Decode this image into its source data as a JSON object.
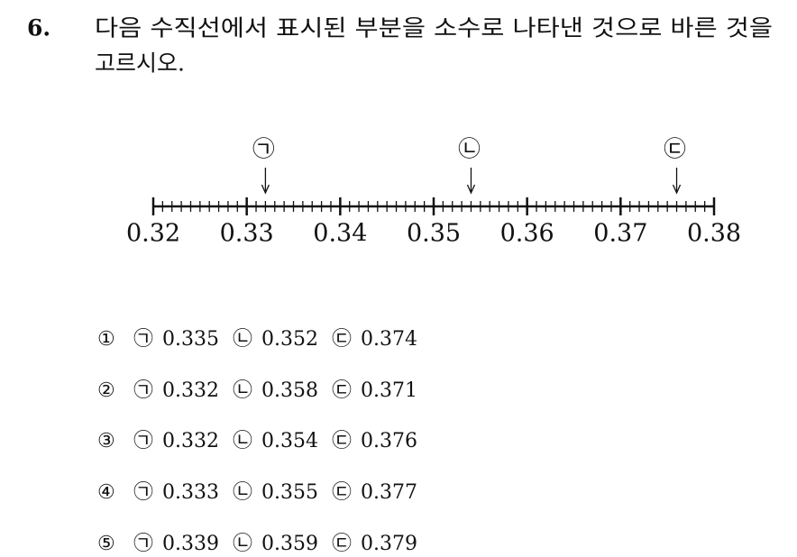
{
  "question": {
    "number": "6.",
    "lines": [
      "다음 수직선에서 표시된 부분을 소수로 나타낸 것으로 바른 것을",
      "고르시오."
    ]
  },
  "number_line": {
    "ticks": [
      0.32,
      0.33,
      0.34,
      0.35,
      0.36,
      0.37,
      0.38
    ],
    "markers": [
      {
        "label": "㉠",
        "value": 0.332
      },
      {
        "label": "㉡",
        "value": 0.354
      },
      {
        "label": "㉢",
        "value": 0.376
      }
    ]
  },
  "options": [
    {
      "number": "①",
      "items": [
        {
          "mark": "㉠",
          "value": 0.335
        },
        {
          "mark": "㉡",
          "value": 0.352
        },
        {
          "mark": "㉢",
          "value": 0.374
        }
      ]
    },
    {
      "number": "②",
      "items": [
        {
          "mark": "㉠",
          "value": 0.332
        },
        {
          "mark": "㉡",
          "value": 0.358
        },
        {
          "mark": "㉢",
          "value": 0.371
        }
      ]
    },
    {
      "number": "③",
      "items": [
        {
          "mark": "㉠",
          "value": 0.332
        },
        {
          "mark": "㉡",
          "value": 0.354
        },
        {
          "mark": "㉢",
          "value": 0.376
        }
      ]
    },
    {
      "number": "④",
      "items": [
        {
          "mark": "㉠",
          "value": 0.333
        },
        {
          "mark": "㉡",
          "value": 0.355
        },
        {
          "mark": "㉢",
          "value": 0.377
        }
      ]
    },
    {
      "number": "⑤",
      "items": [
        {
          "mark": "㉠",
          "value": 0.339
        },
        {
          "mark": "㉡",
          "value": 0.359
        },
        {
          "mark": "㉢",
          "value": 0.379
        }
      ]
    }
  ]
}
